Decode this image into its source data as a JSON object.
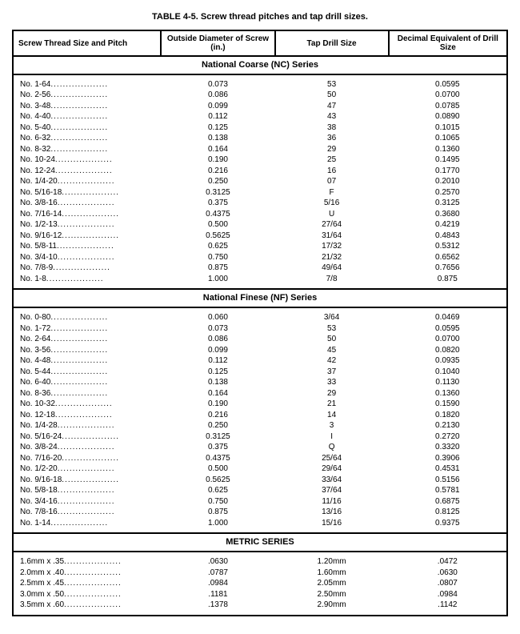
{
  "title": "TABLE 4-5. Screw thread pitches and tap drill sizes.",
  "columns": {
    "c1": "Screw Thread Size and Pitch",
    "c2": "Outside Diameter of Screw (in.)",
    "c3": "Tap Drill Size",
    "c4": "Decimal Equivalent of Drill Size"
  },
  "sections": [
    {
      "heading": "National Coarse (NC) Series",
      "rows": [
        {
          "size": "No. 1-64",
          "od": "0.073",
          "tap": "53",
          "dec": "0.0595"
        },
        {
          "size": "No. 2-56",
          "od": "0.086",
          "tap": "50",
          "dec": "0.0700"
        },
        {
          "size": "No. 3-48",
          "od": "0.099",
          "tap": "47",
          "dec": "0.0785"
        },
        {
          "size": "No. 4-40",
          "od": "0.112",
          "tap": "43",
          "dec": "0.0890"
        },
        {
          "size": "No. 5-40",
          "od": "0.125",
          "tap": "38",
          "dec": "0.1015"
        },
        {
          "size": "No. 6-32",
          "od": "0.138",
          "tap": "36",
          "dec": "0.1065"
        },
        {
          "size": "No. 8-32",
          "od": "0.164",
          "tap": "29",
          "dec": "0.1360"
        },
        {
          "size": "No. 10-24",
          "od": "0.190",
          "tap": "25",
          "dec": "0.1495"
        },
        {
          "size": "No. 12-24",
          "od": "0.216",
          "tap": "16",
          "dec": "0.1770"
        },
        {
          "size": "No. 1/4-20",
          "od": "0.250",
          "tap": "07",
          "dec": "0.2010"
        },
        {
          "size": "No. 5/16-18",
          "od": "0.3125",
          "tap": "F",
          "dec": "0.2570"
        },
        {
          "size": "No. 3/8-16",
          "od": "0.375",
          "tap": "5/16",
          "dec": "0.3125"
        },
        {
          "size": "No. 7/16-14",
          "od": "0.4375",
          "tap": "U",
          "dec": "0.3680"
        },
        {
          "size": "No. 1/2-13",
          "od": "0.500",
          "tap": "27/64",
          "dec": "0.4219"
        },
        {
          "size": "No. 9/16-12",
          "od": "0.5625",
          "tap": "31/64",
          "dec": "0.4843"
        },
        {
          "size": "No. 5/8-11",
          "od": "0.625",
          "tap": "17/32",
          "dec": "0.5312"
        },
        {
          "size": "No. 3/4-10",
          "od": "0.750",
          "tap": "21/32",
          "dec": "0.6562"
        },
        {
          "size": "No. 7/8-9",
          "od": "0.875",
          "tap": "49/64",
          "dec": "0.7656"
        },
        {
          "size": "No. 1-8",
          "od": "1.000",
          "tap": "7/8",
          "dec": "0.875"
        }
      ]
    },
    {
      "heading": "National Finese (NF) Series",
      "rows": [
        {
          "size": "No. 0-80",
          "od": "0.060",
          "tap": "3/64",
          "dec": "0.0469"
        },
        {
          "size": "No. 1-72",
          "od": "0.073",
          "tap": "53",
          "dec": "0.0595"
        },
        {
          "size": "No. 2-64",
          "od": "0.086",
          "tap": "50",
          "dec": "0.0700"
        },
        {
          "size": "No. 3-56",
          "od": "0.099",
          "tap": "45",
          "dec": "0.0820"
        },
        {
          "size": "No. 4-48",
          "od": "0.112",
          "tap": "42",
          "dec": "0.0935"
        },
        {
          "size": "No. 5-44",
          "od": "0.125",
          "tap": "37",
          "dec": "0.1040"
        },
        {
          "size": "No. 6-40",
          "od": "0.138",
          "tap": "33",
          "dec": "0.1130"
        },
        {
          "size": "No. 8-36",
          "od": "0.164",
          "tap": "29",
          "dec": "0.1360"
        },
        {
          "size": "No. 10-32",
          "od": "0.190",
          "tap": "21",
          "dec": "0.1590"
        },
        {
          "size": "No. 12-18",
          "od": "0.216",
          "tap": "14",
          "dec": "0.1820"
        },
        {
          "size": "No. 1/4-28",
          "od": "0.250",
          "tap": "3",
          "dec": "0.2130"
        },
        {
          "size": "No. 5/16-24",
          "od": "0.3125",
          "tap": "I",
          "dec": "0.2720"
        },
        {
          "size": "No. 3/8-24",
          "od": "0.375",
          "tap": "Q",
          "dec": "0.3320"
        },
        {
          "size": "No. 7/16-20",
          "od": "0.4375",
          "tap": "25/64",
          "dec": "0.3906"
        },
        {
          "size": "No. 1/2-20",
          "od": "0.500",
          "tap": "29/64",
          "dec": "0.4531"
        },
        {
          "size": "No. 9/16-18",
          "od": "0.5625",
          "tap": "33/64",
          "dec": "0.5156"
        },
        {
          "size": "No. 5/8-18",
          "od": "0.625",
          "tap": "37/64",
          "dec": "0.5781"
        },
        {
          "size": "No. 3/4-16",
          "od": "0.750",
          "tap": "11/16",
          "dec": "0.6875"
        },
        {
          "size": "No. 7/8-16",
          "od": "0.875",
          "tap": "13/16",
          "dec": "0.8125"
        },
        {
          "size": "No. 1-14",
          "od": "1.000",
          "tap": "15/16",
          "dec": "0.9375"
        }
      ]
    },
    {
      "heading": "METRIC SERIES",
      "rows": [
        {
          "size": "1.6mm x .35",
          "od": ".0630",
          "tap": "1.20mm",
          "dec": ".0472"
        },
        {
          "size": "2.0mm x .40",
          "od": ".0787",
          "tap": "1.60mm",
          "dec": ".0630"
        },
        {
          "size": "2.5mm x .45",
          "od": ".0984",
          "tap": "2.05mm",
          "dec": ".0807"
        },
        {
          "size": "3.0mm x .50",
          "od": ".1181",
          "tap": "2.50mm",
          "dec": ".0984"
        },
        {
          "size": "3.5mm x .60",
          "od": ".1378",
          "tap": "2.90mm",
          "dec": ".1142"
        }
      ]
    }
  ],
  "style": {
    "background_color": "#ffffff",
    "text_color": "#000000",
    "border_color": "#000000",
    "font_family": "Arial, Helvetica, sans-serif",
    "title_fontsize": 11,
    "body_fontsize": 10,
    "dot_leader": "...................",
    "col_widths_pct": [
      30,
      23,
      23,
      24
    ]
  }
}
